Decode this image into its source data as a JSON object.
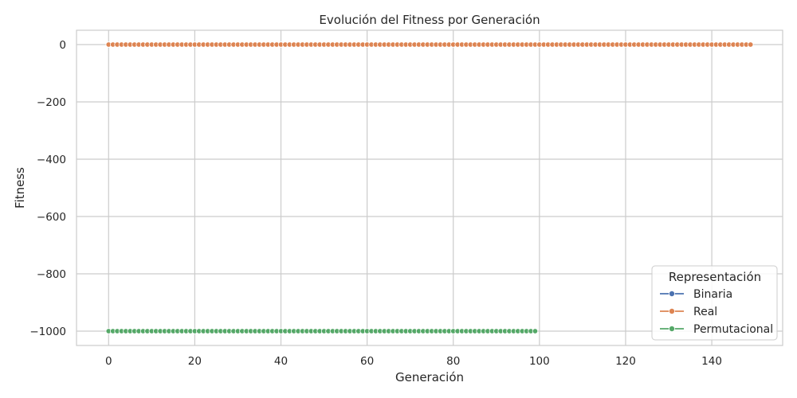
{
  "chart_data": {
    "type": "line",
    "title": "Evolución del Fitness por Generación",
    "xlabel": "Generación",
    "ylabel": "Fitness",
    "xlim": [
      -7.45,
      156.45
    ],
    "ylim": [
      -1050,
      50
    ],
    "xticks": [
      0,
      20,
      40,
      60,
      80,
      100,
      120,
      140
    ],
    "yticks": [
      0,
      -200,
      -400,
      -600,
      -800,
      -1000
    ],
    "ytick_labels": [
      "0",
      "−200",
      "−400",
      "−600",
      "−800",
      "−1000"
    ],
    "grid": true,
    "legend": {
      "title": "Representación",
      "position": "bottom-right"
    },
    "series": [
      {
        "name": "Binaria",
        "color": "#4c72b0",
        "x_start": 0,
        "x_end": 149,
        "value": 0,
        "n_points": 150
      },
      {
        "name": "Real",
        "color": "#dd8452",
        "x_start": 0,
        "x_end": 149,
        "value": 0,
        "n_points": 150
      },
      {
        "name": "Permutacional",
        "color": "#55a868",
        "x_start": 0,
        "x_end": 99,
        "value": -1000,
        "n_points": 100
      }
    ]
  }
}
